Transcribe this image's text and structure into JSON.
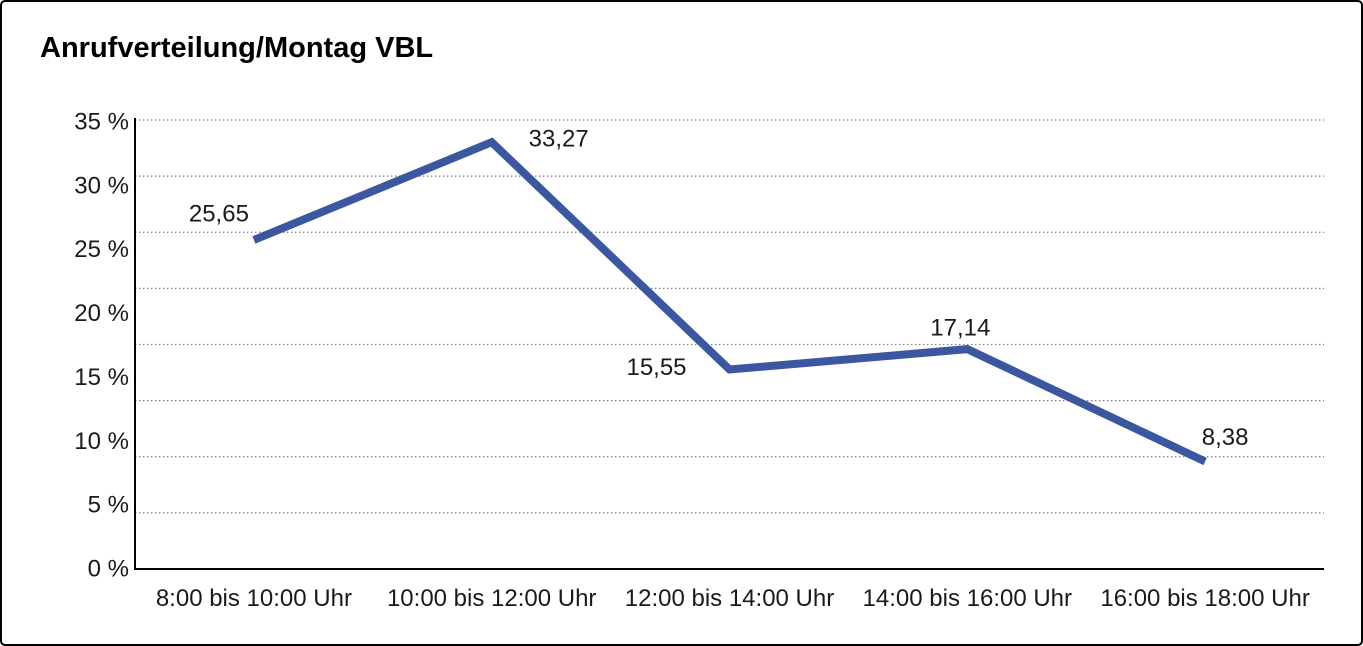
{
  "header": {
    "title": "Anrufverteilung/Montag VBL"
  },
  "chart_data": {
    "type": "line",
    "title": "Anrufverteilung/Montag VBL",
    "categories": [
      "8:00 bis 10:00 Uhr",
      "10:00 bis 12:00 Uhr",
      "12:00 bis 14:00 Uhr",
      "14:00 bis 16:00 Uhr",
      "16:00 bis 18:00 Uhr"
    ],
    "values": [
      25.65,
      33.27,
      15.55,
      17.14,
      8.38
    ],
    "value_labels": [
      "25,65",
      "33,27",
      "15,55",
      "17,14",
      "8,38"
    ],
    "xlabel": "",
    "ylabel": "",
    "y_tick_labels": [
      "35 %",
      "30 %",
      "25 %",
      "20 %",
      "15 %",
      "10 %",
      "5 %",
      "0 %"
    ],
    "ylim": [
      0,
      35
    ],
    "y_tick_step": 5,
    "grid": "horizontal-dotted",
    "gridline_count": 9,
    "legend": "none",
    "colors": {
      "line": "#3a57a0",
      "axis": "#000000",
      "gridline": "#7a7a7a",
      "text": "#1a1a1a",
      "background": "#ffffff",
      "border": "#000000"
    }
  }
}
